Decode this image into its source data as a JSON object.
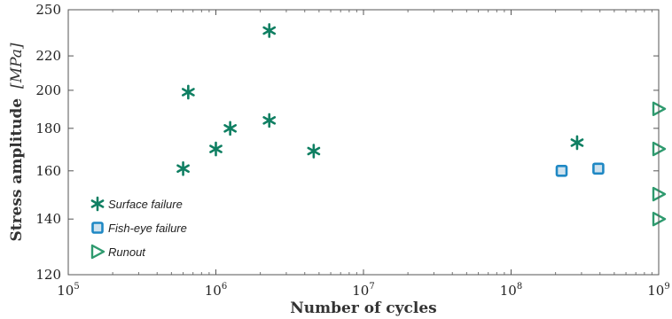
{
  "chart_data": {
    "type": "scatter",
    "xlabel": "Number of cycles",
    "ylabel": "Stress amplitude",
    "ylabel_unit": "[MPa]",
    "x_scale": "log",
    "y_scale": "log",
    "xlim": [
      100000,
      1000000000
    ],
    "ylim": [
      120,
      250
    ],
    "x_ticks": [
      {
        "base": "10",
        "exp": "5",
        "value": 100000
      },
      {
        "base": "10",
        "exp": "6",
        "value": 1000000
      },
      {
        "base": "10",
        "exp": "7",
        "value": 10000000
      },
      {
        "base": "10",
        "exp": "8",
        "value": 100000000
      },
      {
        "base": "10",
        "exp": "9",
        "value": 1000000000
      }
    ],
    "y_ticks": [
      {
        "label": "120",
        "value": 120
      },
      {
        "label": "140",
        "value": 140
      },
      {
        "label": "160",
        "value": 160
      },
      {
        "label": "180",
        "value": 180
      },
      {
        "label": "200",
        "value": 200
      },
      {
        "label": "220",
        "value": 220
      },
      {
        "label": "250",
        "value": 250
      }
    ],
    "grid": false,
    "legend_position": "bottom-left",
    "series": [
      {
        "name": "Surface failure",
        "marker": "asterisk",
        "color": "#0f7f62",
        "points": [
          {
            "x": 600000,
            "y": 161
          },
          {
            "x": 650000,
            "y": 199
          },
          {
            "x": 1000000,
            "y": 170
          },
          {
            "x": 1250000,
            "y": 180
          },
          {
            "x": 2300000,
            "y": 236
          },
          {
            "x": 2300000,
            "y": 184
          },
          {
            "x": 4600000,
            "y": 169
          },
          {
            "x": 280000000,
            "y": 173
          }
        ]
      },
      {
        "name": "Fish-eye failure",
        "marker": "square",
        "color": "#1f88c4",
        "points": [
          {
            "x": 220000000,
            "y": 160
          },
          {
            "x": 390000000,
            "y": 161
          }
        ]
      },
      {
        "name": "Runout",
        "marker": "triangle-right",
        "color": "#2e9a6e",
        "points": [
          {
            "x": 1000000000,
            "y": 190
          },
          {
            "x": 1000000000,
            "y": 170
          },
          {
            "x": 1000000000,
            "y": 150
          },
          {
            "x": 1000000000,
            "y": 140
          }
        ]
      }
    ]
  }
}
